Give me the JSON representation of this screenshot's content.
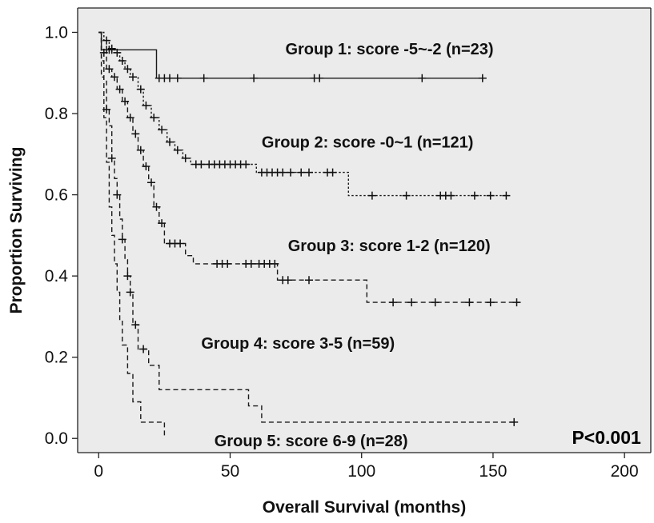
{
  "chart_data": {
    "type": "line",
    "subtype": "kaplan-meier",
    "xlabel": "Overall Survival (months)",
    "ylabel": "Proportion Surviving",
    "xlim": [
      -8,
      210
    ],
    "ylim": [
      -0.035,
      1.06
    ],
    "x_ticks": [
      "0",
      "50",
      "100",
      "150",
      "200"
    ],
    "y_ticks": [
      "0.0",
      "0.2",
      "0.4",
      "0.6",
      "0.8",
      "1.0"
    ],
    "grid": false,
    "background_color": "#ebebeb",
    "series": [
      {
        "label": "Group 1: score -5~-2 (n=23)",
        "style": "solid",
        "steps": [
          [
            0,
            1.0
          ],
          [
            1,
            0.957
          ],
          [
            22,
            0.887
          ],
          [
            146,
            0.887
          ]
        ],
        "censored": [
          [
            3,
            0.957
          ],
          [
            4,
            0.957
          ],
          [
            5,
            0.957
          ],
          [
            23,
            0.887
          ],
          [
            25,
            0.887
          ],
          [
            27,
            0.887
          ],
          [
            30,
            0.887
          ],
          [
            40,
            0.887
          ],
          [
            59,
            0.887
          ],
          [
            82,
            0.887
          ],
          [
            84,
            0.887
          ],
          [
            123,
            0.887
          ],
          [
            146,
            0.887
          ]
        ]
      },
      {
        "label": "Group 2: score -0~1 (n=121)",
        "style": "dotted",
        "steps": [
          [
            0,
            1.0
          ],
          [
            2,
            0.98
          ],
          [
            4,
            0.96
          ],
          [
            6,
            0.95
          ],
          [
            8,
            0.93
          ],
          [
            10,
            0.91
          ],
          [
            12,
            0.89
          ],
          [
            15,
            0.86
          ],
          [
            17,
            0.82
          ],
          [
            20,
            0.79
          ],
          [
            23,
            0.76
          ],
          [
            26,
            0.73
          ],
          [
            29,
            0.71
          ],
          [
            32,
            0.69
          ],
          [
            35,
            0.675
          ],
          [
            60,
            0.655
          ],
          [
            95,
            0.598
          ],
          [
            156,
            0.598
          ]
        ],
        "censored": [
          [
            3,
            0.98
          ],
          [
            5,
            0.96
          ],
          [
            7,
            0.95
          ],
          [
            9,
            0.93
          ],
          [
            11,
            0.91
          ],
          [
            13,
            0.89
          ],
          [
            16,
            0.86
          ],
          [
            18,
            0.82
          ],
          [
            21,
            0.79
          ],
          [
            24,
            0.76
          ],
          [
            27,
            0.73
          ],
          [
            30,
            0.71
          ],
          [
            33,
            0.69
          ],
          [
            37,
            0.675
          ],
          [
            39,
            0.675
          ],
          [
            42,
            0.675
          ],
          [
            44,
            0.675
          ],
          [
            46,
            0.675
          ],
          [
            48,
            0.675
          ],
          [
            50,
            0.675
          ],
          [
            52,
            0.675
          ],
          [
            54,
            0.675
          ],
          [
            56,
            0.675
          ],
          [
            62,
            0.655
          ],
          [
            64,
            0.655
          ],
          [
            66,
            0.655
          ],
          [
            68,
            0.655
          ],
          [
            70,
            0.655
          ],
          [
            73,
            0.655
          ],
          [
            77,
            0.655
          ],
          [
            80,
            0.655
          ],
          [
            87,
            0.655
          ],
          [
            89,
            0.655
          ],
          [
            104,
            0.598
          ],
          [
            117,
            0.598
          ],
          [
            130,
            0.598
          ],
          [
            132,
            0.598
          ],
          [
            134,
            0.598
          ],
          [
            143,
            0.598
          ],
          [
            149,
            0.598
          ],
          [
            155,
            0.598
          ]
        ]
      },
      {
        "label": "Group 3: score 1-2 (n=120)",
        "style": "dashed",
        "steps": [
          [
            0,
            1.0
          ],
          [
            1,
            0.95
          ],
          [
            3,
            0.91
          ],
          [
            5,
            0.89
          ],
          [
            7,
            0.86
          ],
          [
            9,
            0.83
          ],
          [
            11,
            0.79
          ],
          [
            13,
            0.75
          ],
          [
            15,
            0.71
          ],
          [
            17,
            0.67
          ],
          [
            19,
            0.63
          ],
          [
            21,
            0.57
          ],
          [
            23,
            0.53
          ],
          [
            25,
            0.48
          ],
          [
            33,
            0.45
          ],
          [
            36,
            0.43
          ],
          [
            68,
            0.39
          ],
          [
            102,
            0.335
          ],
          [
            160,
            0.335
          ]
        ],
        "censored": [
          [
            2,
            0.95
          ],
          [
            4,
            0.91
          ],
          [
            6,
            0.89
          ],
          [
            8,
            0.86
          ],
          [
            10,
            0.83
          ],
          [
            12,
            0.79
          ],
          [
            14,
            0.75
          ],
          [
            16,
            0.71
          ],
          [
            18,
            0.67
          ],
          [
            20,
            0.63
          ],
          [
            22,
            0.57
          ],
          [
            24,
            0.53
          ],
          [
            27,
            0.48
          ],
          [
            29,
            0.48
          ],
          [
            31,
            0.48
          ],
          [
            45,
            0.43
          ],
          [
            47,
            0.43
          ],
          [
            49,
            0.43
          ],
          [
            56,
            0.43
          ],
          [
            58,
            0.43
          ],
          [
            61,
            0.43
          ],
          [
            63,
            0.43
          ],
          [
            65,
            0.43
          ],
          [
            67,
            0.43
          ],
          [
            70,
            0.39
          ],
          [
            72,
            0.39
          ],
          [
            80,
            0.39
          ],
          [
            112,
            0.335
          ],
          [
            119,
            0.335
          ],
          [
            128,
            0.335
          ],
          [
            141,
            0.335
          ],
          [
            149,
            0.335
          ],
          [
            159,
            0.335
          ]
        ]
      },
      {
        "label": "Group 4: score 3-5 (n=59)",
        "style": "dashed",
        "steps": [
          [
            0,
            1.0
          ],
          [
            1,
            0.93
          ],
          [
            2,
            0.88
          ],
          [
            3,
            0.81
          ],
          [
            4,
            0.77
          ],
          [
            5,
            0.69
          ],
          [
            6,
            0.64
          ],
          [
            7,
            0.6
          ],
          [
            8,
            0.54
          ],
          [
            9,
            0.49
          ],
          [
            10,
            0.44
          ],
          [
            11,
            0.4
          ],
          [
            12,
            0.36
          ],
          [
            13,
            0.28
          ],
          [
            15,
            0.22
          ],
          [
            19,
            0.18
          ],
          [
            23,
            0.12
          ],
          [
            57,
            0.08
          ],
          [
            62,
            0.04
          ],
          [
            158,
            0.04
          ]
        ],
        "censored": [
          [
            3,
            0.81
          ],
          [
            5,
            0.69
          ],
          [
            7,
            0.6
          ],
          [
            9,
            0.49
          ],
          [
            11,
            0.4
          ],
          [
            12,
            0.36
          ],
          [
            14,
            0.28
          ],
          [
            17,
            0.22
          ],
          [
            158,
            0.04
          ]
        ]
      },
      {
        "label": "Group 5: score 6-9 (n=28)",
        "style": "dashed",
        "steps": [
          [
            0,
            1.0
          ],
          [
            1,
            0.89
          ],
          [
            2,
            0.79
          ],
          [
            3,
            0.68
          ],
          [
            4,
            0.57
          ],
          [
            5,
            0.5
          ],
          [
            6,
            0.43
          ],
          [
            7,
            0.36
          ],
          [
            8,
            0.29
          ],
          [
            9,
            0.23
          ],
          [
            11,
            0.16
          ],
          [
            13,
            0.09
          ],
          [
            16,
            0.04
          ],
          [
            22,
            0.04
          ],
          [
            25,
            0.0
          ]
        ],
        "censored": []
      }
    ],
    "annotations": [
      {
        "text": "Group 1: score -5~-2 (n=23)",
        "x": 71,
        "y": 0.96
      },
      {
        "text": "Group 2: score -0~1 (n=121)",
        "x": 62,
        "y": 0.73
      },
      {
        "text": "Group 3: score 1-2 (n=120)",
        "x": 72,
        "y": 0.475
      },
      {
        "text": "Group 4: score 3-5 (n=59)",
        "x": 39,
        "y": 0.235
      },
      {
        "text": "Group 5: score 6-9 (n=28)",
        "x": 44,
        "y": -0.005
      },
      {
        "text": "P<0.001",
        "x": 180,
        "y": 0.0,
        "style": "pvalue"
      }
    ]
  }
}
